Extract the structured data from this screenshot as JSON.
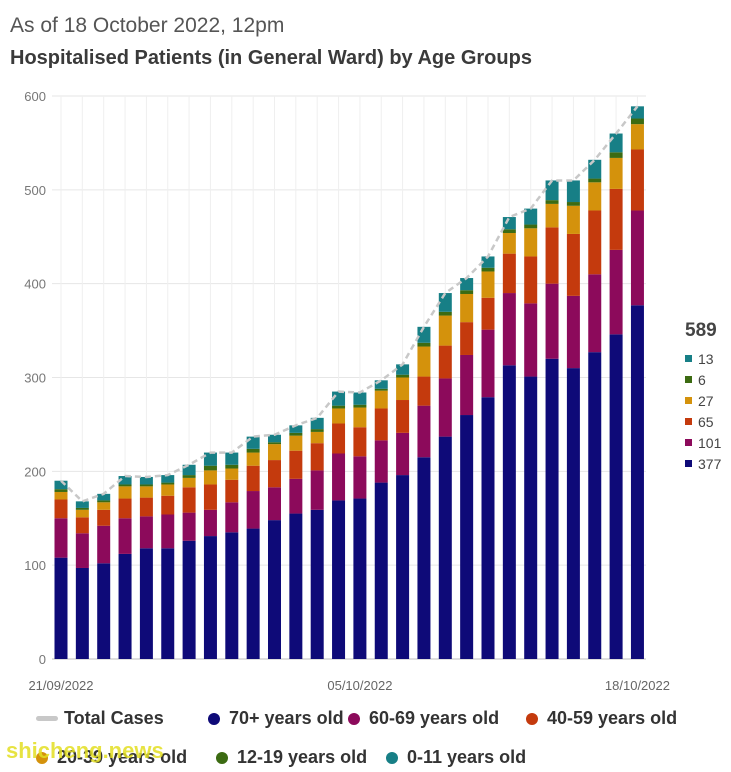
{
  "header": {
    "subtitle": "As of 18 October 2022, 12pm",
    "title": "Hospitalised Patients (in General Ward) by Age Groups"
  },
  "chart_data": {
    "type": "bar",
    "stacked": true,
    "title": "Hospitalised Patients (in General Ward) by Age Groups",
    "subtitle": "As of 18 October 2022, 12pm",
    "x_tick_labels": [
      "21/09/2022",
      "05/10/2022",
      "18/10/2022"
    ],
    "y_ticks": [
      0,
      100,
      200,
      300,
      400,
      500,
      600
    ],
    "ylim": [
      0,
      600
    ],
    "grid": true,
    "categories": [
      "21/09/2022",
      "22/09/2022",
      "23/09/2022",
      "24/09/2022",
      "25/09/2022",
      "26/09/2022",
      "27/09/2022",
      "28/09/2022",
      "29/09/2022",
      "30/09/2022",
      "01/10/2022",
      "02/10/2022",
      "03/10/2022",
      "04/10/2022",
      "05/10/2022",
      "06/10/2022",
      "07/10/2022",
      "08/10/2022",
      "09/10/2022",
      "10/10/2022",
      "11/10/2022",
      "12/10/2022",
      "13/10/2022",
      "14/10/2022",
      "15/10/2022",
      "16/10/2022",
      "17/10/2022",
      "18/10/2022"
    ],
    "series": [
      {
        "name": "70+ years old",
        "color": "#0e0a78",
        "values": [
          108,
          97,
          102,
          112,
          118,
          118,
          126,
          131,
          135,
          139,
          148,
          155,
          159,
          169,
          171,
          188,
          196,
          215,
          237,
          260,
          279,
          313,
          301,
          320,
          310,
          327,
          346,
          377
        ]
      },
      {
        "name": "60-69 years old",
        "color": "#8c0a5b",
        "values": [
          42,
          37,
          40,
          38,
          34,
          36,
          30,
          28,
          32,
          40,
          35,
          37,
          42,
          50,
          45,
          45,
          45,
          55,
          62,
          64,
          72,
          77,
          78,
          80,
          77,
          83,
          90,
          101
        ]
      },
      {
        "name": "40-59 years old",
        "color": "#c43a0d",
        "values": [
          20,
          17,
          17,
          21,
          20,
          20,
          27,
          27,
          24,
          27,
          29,
          30,
          29,
          32,
          31,
          34,
          35,
          31,
          35,
          35,
          34,
          42,
          50,
          60,
          66,
          68,
          65,
          65
        ]
      },
      {
        "name": "20-39 years old",
        "color": "#d4920c",
        "values": [
          8,
          8,
          8,
          13,
          12,
          12,
          10,
          15,
          12,
          14,
          17,
          16,
          12,
          16,
          21,
          19,
          24,
          32,
          32,
          30,
          28,
          22,
          30,
          25,
          30,
          30,
          33,
          27
        ]
      },
      {
        "name": "12-19 years old",
        "color": "#3c6b12",
        "values": [
          3,
          2,
          2,
          2,
          2,
          2,
          3,
          5,
          4,
          4,
          2,
          3,
          3,
          3,
          3,
          2,
          3,
          4,
          4,
          4,
          4,
          4,
          4,
          4,
          4,
          4,
          6,
          6
        ]
      },
      {
        "name": "0-11 years old",
        "color": "#177f86",
        "values": [
          9,
          7,
          7,
          9,
          8,
          8,
          11,
          14,
          13,
          13,
          8,
          8,
          12,
          15,
          13,
          9,
          11,
          17,
          20,
          13,
          12,
          13,
          17,
          21,
          23,
          20,
          20,
          13
        ]
      }
    ],
    "total_series": {
      "name": "Total Cases",
      "color": "#c8c8c8",
      "values": [
        190,
        168,
        176,
        195,
        194,
        196,
        207,
        220,
        220,
        237,
        239,
        249,
        257,
        285,
        284,
        297,
        314,
        354,
        390,
        406,
        429,
        471,
        480,
        510,
        510,
        532,
        560,
        589
      ]
    },
    "side_labels": {
      "total": "589",
      "values": [
        "13",
        "6",
        "27",
        "65",
        "101",
        "377"
      ]
    }
  },
  "legend": [
    {
      "label": "Total Cases",
      "kind": "line",
      "color": "#c8c8c8"
    },
    {
      "label": "70+ years old",
      "kind": "dot",
      "color": "#0e0a78"
    },
    {
      "label": "60-69 years old",
      "kind": "dot",
      "color": "#8c0a5b"
    },
    {
      "label": "40-59 years old",
      "kind": "dot",
      "color": "#c43a0d"
    },
    {
      "label": "20-39 years old",
      "kind": "dot",
      "color": "#d4920c"
    },
    {
      "label": "12-19 years old",
      "kind": "dot",
      "color": "#3c6b12"
    },
    {
      "label": "0-11 years old",
      "kind": "dot",
      "color": "#177f86"
    }
  ],
  "watermark": "shicheng.news"
}
